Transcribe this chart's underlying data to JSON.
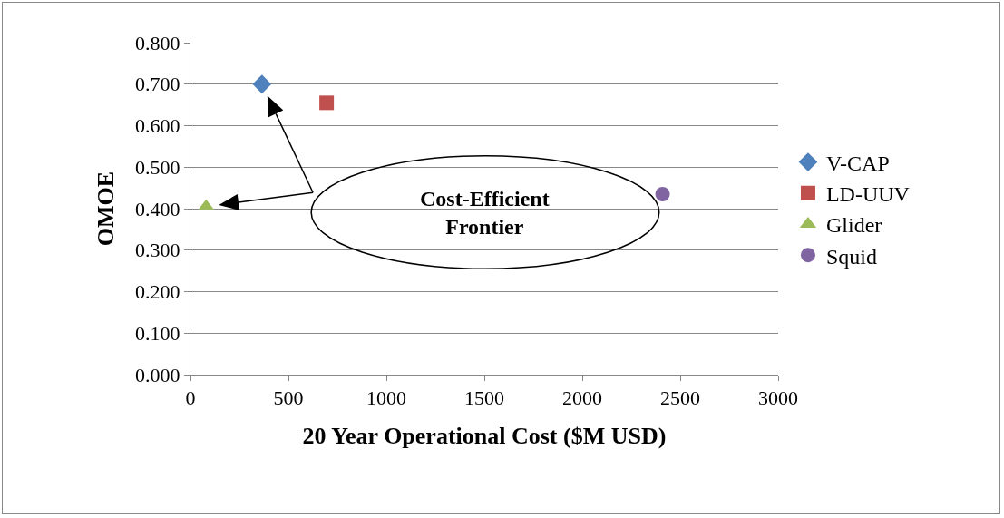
{
  "chart_data": {
    "type": "scatter",
    "xlabel": "20 Year Operational Cost ($M USD)",
    "ylabel": "OMOE",
    "series": [
      {
        "name": "V-CAP",
        "color": "#4f81bd",
        "marker": "diamond",
        "x": [
          365
        ],
        "values": [
          0.7
        ]
      },
      {
        "name": "LD-UUV",
        "color": "#c0504d",
        "marker": "square",
        "x": [
          695
        ],
        "values": [
          0.655
        ]
      },
      {
        "name": "Glider",
        "color": "#9bbb59",
        "marker": "triangle",
        "x": [
          80
        ],
        "values": [
          0.405
        ]
      },
      {
        "name": "Squid",
        "color": "#8064a2",
        "marker": "circle",
        "x": [
          2410
        ],
        "values": [
          0.435
        ]
      }
    ],
    "annotations": [
      "Cost-Efficient Frontier"
    ],
    "xlim": [
      0,
      3000
    ],
    "xticks": [
      0,
      500,
      1000,
      1500,
      2000,
      2500,
      3000
    ],
    "ylim": [
      0,
      0.8
    ],
    "yticks": [
      {
        "value": 0,
        "label": "0.000"
      },
      {
        "value": 0.1,
        "label": "0.100"
      },
      {
        "value": 0.2,
        "label": "0.200"
      },
      {
        "value": 0.3,
        "label": "0.300"
      },
      {
        "value": 0.4,
        "label": "0.400"
      },
      {
        "value": 0.5,
        "label": "0.500"
      },
      {
        "value": 0.6,
        "label": "0.600"
      },
      {
        "value": 0.7,
        "label": "0.700"
      },
      {
        "value": 0.8,
        "label": "0.800"
      }
    ],
    "grid": "y",
    "legend": "right"
  }
}
